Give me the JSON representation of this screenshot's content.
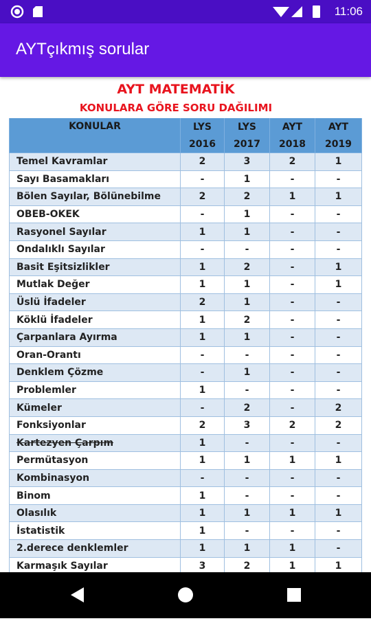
{
  "status_bar": {
    "time": "11:06"
  },
  "app_bar": {
    "title": "AYTçıkmış sorular"
  },
  "header": {
    "title": "AYT MATEMATİK",
    "subtitle": "KONULARA GÖRE SORU DAĞILIMI"
  },
  "table": {
    "topic_header": "KONULAR",
    "columns": [
      {
        "exam": "LYS",
        "year": 2016
      },
      {
        "exam": "LYS",
        "year": 2017
      },
      {
        "exam": "AYT",
        "year": 2018
      },
      {
        "exam": "AYT",
        "year": 2019
      }
    ],
    "rows": [
      {
        "topic": "Temel Kavramlar",
        "counts": [
          2,
          3,
          2,
          1
        ]
      },
      {
        "topic": "Sayı Basamakları",
        "counts": [
          "-",
          1,
          "-",
          "-"
        ]
      },
      {
        "topic": "Bölen Sayılar, Bölünebilme",
        "counts": [
          2,
          2,
          1,
          1
        ]
      },
      {
        "topic": "OBEB-OKEK",
        "counts": [
          "-",
          1,
          "-",
          "-"
        ]
      },
      {
        "topic": "Rasyonel Sayılar",
        "counts": [
          1,
          1,
          "-",
          "-"
        ]
      },
      {
        "topic": "Ondalıklı Sayılar",
        "counts": [
          "-",
          "-",
          "-",
          "-"
        ]
      },
      {
        "topic": "Basit Eşitsizlikler",
        "counts": [
          1,
          2,
          "-",
          1
        ]
      },
      {
        "topic": "Mutlak Değer",
        "counts": [
          1,
          1,
          "-",
          1
        ]
      },
      {
        "topic": "Üslü İfadeler",
        "counts": [
          2,
          1,
          "-",
          "-"
        ]
      },
      {
        "topic": "Köklü İfadeler",
        "counts": [
          1,
          2,
          "-",
          "-"
        ]
      },
      {
        "topic": "Çarpanlara Ayırma",
        "counts": [
          1,
          1,
          "-",
          "-"
        ]
      },
      {
        "topic": "Oran-Orantı",
        "counts": [
          "-",
          "-",
          "-",
          "-"
        ]
      },
      {
        "topic": "Denklem Çözme",
        "counts": [
          "-",
          1,
          "-",
          "-"
        ]
      },
      {
        "topic": "Problemler",
        "counts": [
          1,
          "-",
          "-",
          "-"
        ]
      },
      {
        "topic": "Kümeler",
        "counts": [
          "-",
          2,
          "-",
          2
        ]
      },
      {
        "topic": "Fonksiyonlar",
        "counts": [
          2,
          3,
          2,
          2
        ]
      },
      {
        "topic": "Kartezyen Çarpım",
        "counts": [
          1,
          "-",
          "-",
          "-"
        ],
        "strikethrough": true
      },
      {
        "topic": "Permütasyon",
        "counts": [
          1,
          1,
          1,
          1
        ]
      },
      {
        "topic": "Kombinasyon",
        "counts": [
          "-",
          "-",
          "-",
          "-"
        ]
      },
      {
        "topic": "Binom",
        "counts": [
          1,
          "-",
          "-",
          "-"
        ]
      },
      {
        "topic": "Olasılık",
        "counts": [
          1,
          1,
          1,
          1
        ]
      },
      {
        "topic": "İstatistik",
        "counts": [
          1,
          "-",
          "-",
          "-"
        ]
      },
      {
        "topic": "2.derece denklemler",
        "counts": [
          1,
          1,
          1,
          "-"
        ]
      },
      {
        "topic": "Karmaşık Sayılar",
        "counts": [
          3,
          2,
          1,
          1
        ]
      }
    ]
  }
}
